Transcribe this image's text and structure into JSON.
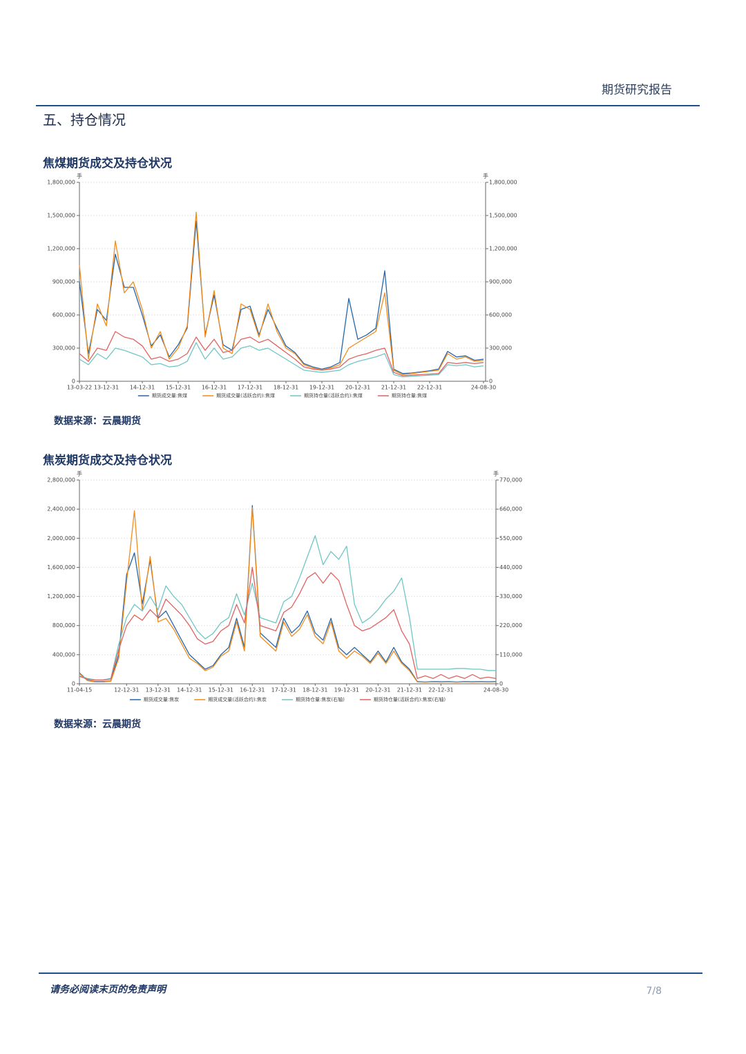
{
  "header": {
    "title": "期货研究报告"
  },
  "section": {
    "title": "五、持仓情况"
  },
  "chart_data": [
    {
      "type": "line",
      "title": "焦煤期货成交及持仓状况",
      "y_unit": "手",
      "y2_unit": "手",
      "categories": [
        "13-03-22",
        null,
        null,
        "13-12-31",
        null,
        null,
        null,
        "14-12-31",
        null,
        null,
        null,
        "15-12-31",
        null,
        null,
        null,
        "16-12-31",
        null,
        null,
        null,
        "17-12-31",
        null,
        null,
        null,
        "18-12-31",
        null,
        null,
        null,
        "19-12-31",
        null,
        null,
        null,
        "20-12-31",
        null,
        null,
        null,
        "21-12-31",
        null,
        null,
        null,
        "22-12-31",
        null,
        null,
        null,
        null,
        null,
        "24-08-30"
      ],
      "series": [
        {
          "name": "期货成交量:焦煤",
          "color": "#2566a8",
          "values": [
            900000,
            250000,
            650000,
            550000,
            1150000,
            850000,
            850000,
            600000,
            320000,
            420000,
            220000,
            330000,
            480000,
            1450000,
            420000,
            780000,
            330000,
            280000,
            650000,
            680000,
            420000,
            650000,
            480000,
            320000,
            260000,
            160000,
            130000,
            110000,
            130000,
            170000,
            750000,
            380000,
            420000,
            480000,
            1000000,
            110000,
            70000,
            75000,
            85000,
            95000,
            110000,
            270000,
            220000,
            230000,
            190000,
            200000
          ]
        },
        {
          "name": "期货成交量(活跃合约):焦煤",
          "color": "#f28c1c",
          "values": [
            1050000,
            200000,
            700000,
            500000,
            1270000,
            800000,
            900000,
            650000,
            300000,
            450000,
            200000,
            300000,
            500000,
            1530000,
            400000,
            820000,
            300000,
            250000,
            700000,
            650000,
            400000,
            700000,
            450000,
            300000,
            250000,
            150000,
            120000,
            100000,
            120000,
            150000,
            300000,
            350000,
            400000,
            450000,
            800000,
            100000,
            60000,
            70000,
            80000,
            90000,
            100000,
            250000,
            200000,
            220000,
            180000,
            190000
          ]
        },
        {
          "name": "期货持仓量(活跃合约):焦煤",
          "color": "#6ec6c4",
          "values": [
            200000,
            150000,
            250000,
            200000,
            300000,
            280000,
            250000,
            220000,
            150000,
            160000,
            130000,
            140000,
            180000,
            350000,
            200000,
            300000,
            200000,
            220000,
            300000,
            320000,
            280000,
            300000,
            250000,
            200000,
            150000,
            100000,
            90000,
            80000,
            90000,
            100000,
            150000,
            180000,
            200000,
            220000,
            250000,
            60000,
            40000,
            45000,
            50000,
            55000,
            60000,
            150000,
            140000,
            150000,
            130000,
            140000
          ]
        },
        {
          "name": "期货持仓量:焦煤",
          "color": "#e0625f",
          "values": [
            250000,
            180000,
            300000,
            280000,
            450000,
            400000,
            380000,
            320000,
            200000,
            220000,
            180000,
            200000,
            250000,
            400000,
            280000,
            380000,
            260000,
            280000,
            380000,
            400000,
            350000,
            380000,
            320000,
            260000,
            200000,
            130000,
            110000,
            100000,
            110000,
            130000,
            200000,
            230000,
            250000,
            280000,
            300000,
            80000,
            50000,
            55000,
            60000,
            65000,
            70000,
            170000,
            160000,
            170000,
            160000,
            170000
          ]
        }
      ],
      "ylim": [
        0,
        1800000
      ],
      "yticks": [
        0,
        {
          "value": 300000,
          "label": "300,000"
        },
        {
          "value": 600000,
          "label": "600,000"
        },
        {
          "value": 900000,
          "label": "900,000"
        },
        {
          "value": 1200000,
          "label": "1,200,000"
        },
        {
          "value": 1500000,
          "label": "1,500,000"
        },
        {
          "value": 1800000,
          "label": "1,800,000"
        }
      ],
      "y2lim": [
        0,
        1800000
      ],
      "y2ticks": [
        0,
        {
          "value": 300000,
          "label": "300,000"
        },
        {
          "value": 600000,
          "label": "600,000"
        },
        {
          "value": 900000,
          "label": "900,000"
        },
        {
          "value": 1200000,
          "label": "1,200,000"
        },
        {
          "value": 1500000,
          "label": "1,500,000"
        },
        {
          "value": 1800000,
          "label": "1,800,000"
        }
      ],
      "grid": true,
      "source": "数据来源：云晨期货"
    },
    {
      "type": "line",
      "title": "焦炭期货成交及持仓状况",
      "y_unit": "手",
      "y2_unit": "手",
      "categories": [
        "11-04-15",
        null,
        null,
        null,
        null,
        null,
        "12-12-31",
        null,
        null,
        null,
        "13-12-31",
        null,
        null,
        null,
        "14-12-31",
        null,
        null,
        null,
        "15-12-31",
        null,
        null,
        null,
        "16-12-31",
        null,
        null,
        null,
        "17-12-31",
        null,
        null,
        null,
        "18-12-31",
        null,
        null,
        null,
        "19-12-31",
        null,
        null,
        null,
        "20-12-31",
        null,
        null,
        null,
        "21-12-31",
        null,
        null,
        null,
        "22-12-31",
        null,
        null,
        null,
        null,
        null,
        null,
        "24-08-30"
      ],
      "series": [
        {
          "name": "期货成交量:焦炭",
          "color": "#2566a8",
          "values": [
            150000,
            50000,
            30000,
            30000,
            40000,
            400000,
            1500000,
            1800000,
            1100000,
            1700000,
            900000,
            1000000,
            800000,
            600000,
            400000,
            300000,
            200000,
            250000,
            400000,
            500000,
            900000,
            500000,
            2450000,
            700000,
            600000,
            500000,
            900000,
            700000,
            800000,
            1000000,
            700000,
            600000,
            900000,
            500000,
            400000,
            500000,
            400000,
            300000,
            450000,
            300000,
            500000,
            300000,
            200000,
            30000,
            25000,
            30000,
            28000,
            30000,
            25000,
            30000,
            28000,
            30000,
            28000,
            30000
          ]
        },
        {
          "name": "期货成交量(活跃合约):焦炭",
          "color": "#f28c1c",
          "values": [
            140000,
            45000,
            25000,
            25000,
            35000,
            350000,
            1400000,
            2380000,
            1000000,
            1750000,
            850000,
            900000,
            750000,
            550000,
            350000,
            280000,
            180000,
            230000,
            380000,
            450000,
            850000,
            450000,
            2420000,
            650000,
            550000,
            450000,
            850000,
            650000,
            750000,
            950000,
            650000,
            550000,
            850000,
            450000,
            350000,
            450000,
            380000,
            280000,
            420000,
            280000,
            450000,
            280000,
            180000,
            25000,
            20000,
            25000,
            22000,
            25000,
            20000,
            25000,
            22000,
            25000,
            22000,
            25000
          ]
        },
        {
          "name": "期货持仓量:焦炭(右轴)",
          "color": "#6ec6c4",
          "axis": "y2",
          "values": [
            30000,
            20000,
            15000,
            15000,
            20000,
            150000,
            250000,
            300000,
            275000,
            330000,
            280000,
            370000,
            330000,
            300000,
            250000,
            200000,
            170000,
            190000,
            230000,
            250000,
            340000,
            260000,
            380000,
            250000,
            240000,
            230000,
            310000,
            330000,
            400000,
            480000,
            560000,
            450000,
            500000,
            470000,
            520000,
            300000,
            230000,
            250000,
            280000,
            320000,
            350000,
            400000,
            250000,
            55000,
            55000,
            55000,
            55000,
            55000,
            58000,
            58000,
            55000,
            55000,
            50000,
            50000
          ]
        },
        {
          "name": "期货持仓量(活跃合约):焦炭(右轴)",
          "color": "#e0625f",
          "axis": "y2",
          "values": [
            28000,
            18000,
            14000,
            14000,
            18000,
            130000,
            220000,
            260000,
            240000,
            280000,
            250000,
            320000,
            290000,
            260000,
            220000,
            170000,
            150000,
            160000,
            200000,
            220000,
            300000,
            230000,
            440000,
            220000,
            210000,
            200000,
            270000,
            290000,
            340000,
            400000,
            420000,
            380000,
            420000,
            390000,
            300000,
            220000,
            200000,
            210000,
            230000,
            250000,
            280000,
            200000,
            150000,
            20000,
            30000,
            20000,
            35000,
            20000,
            30000,
            20000,
            35000,
            20000,
            25000,
            20000
          ]
        }
      ],
      "ylim": [
        0,
        2800000
      ],
      "yticks": [
        0,
        {
          "value": 400000,
          "label": "400,000"
        },
        {
          "value": 800000,
          "label": "800,000"
        },
        {
          "value": 1200000,
          "label": "1,200,000"
        },
        {
          "value": 1600000,
          "label": "1,600,000"
        },
        {
          "value": 2000000,
          "label": "2,000,000"
        },
        {
          "value": 2400000,
          "label": "2,400,000"
        },
        {
          "value": 2800000,
          "label": "2,800,000"
        }
      ],
      "y2lim": [
        0,
        770000
      ],
      "y2ticks": [
        0,
        {
          "value": 110000,
          "label": "110,000"
        },
        {
          "value": 220000,
          "label": "220,000"
        },
        {
          "value": 330000,
          "label": "330,000"
        },
        {
          "value": 440000,
          "label": "440,000"
        },
        {
          "value": 550000,
          "label": "550,000"
        },
        {
          "value": 660000,
          "label": "660,000"
        },
        {
          "value": 770000,
          "label": "770,000"
        }
      ],
      "grid": true,
      "source": "数据来源：云晨期货"
    }
  ],
  "footer": {
    "disclaimer": "请务必阅读末页的免责声明",
    "page": "7/8"
  }
}
